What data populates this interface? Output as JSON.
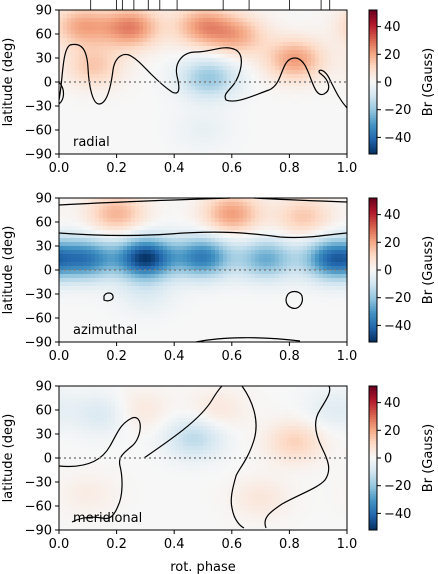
{
  "chart_data": [
    {
      "type": "heatmap",
      "panel_label": "radial",
      "xlabel": "",
      "ylabel": "latitude (deg)",
      "xlim": [
        0,
        1
      ],
      "ylim": [
        -90,
        90
      ],
      "xticks": [
        "0.0",
        "0.2",
        "0.4",
        "0.6",
        "0.8",
        "1.0"
      ],
      "yticks": [
        "90",
        "60",
        "30",
        "0",
        "−30",
        "−60",
        "−90"
      ],
      "colorbar_label": "Br (Gauss)",
      "colorbar_ticks": [
        "40",
        "20",
        "0",
        "−20",
        "−40"
      ],
      "clim": [
        -52,
        52
      ],
      "field_features": [
        {
          "x": 0.25,
          "lat": 68,
          "value": 26
        },
        {
          "x": 0.5,
          "lat": 70,
          "value": 22
        },
        {
          "x": 0.62,
          "lat": 58,
          "value": 18
        },
        {
          "x": 0.08,
          "lat": 70,
          "value": 20
        },
        {
          "x": 0.82,
          "lat": 28,
          "value": 22
        },
        {
          "x": 0.52,
          "lat": 5,
          "value": -20
        },
        {
          "x": 0.12,
          "lat": 20,
          "value": 14
        },
        {
          "x": 0.5,
          "lat": -60,
          "value": -4
        }
      ],
      "observation_phases": [
        0.11,
        0.2,
        0.22,
        0.26,
        0.31,
        0.35,
        0.41,
        0.57,
        0.66,
        0.8,
        0.91,
        0.94
      ]
    },
    {
      "type": "heatmap",
      "panel_label": "azimuthal",
      "xlabel": "",
      "ylabel": "latitude (deg)",
      "xlim": [
        0,
        1
      ],
      "ylim": [
        -90,
        90
      ],
      "xticks": [
        "0.0",
        "0.2",
        "0.4",
        "0.6",
        "0.8",
        "1.0"
      ],
      "yticks": [
        "90",
        "60",
        "30",
        "0",
        "−30",
        "−60",
        "−90"
      ],
      "colorbar_label": "Br (Gauss)",
      "colorbar_ticks": [
        "40",
        "20",
        "0",
        "−20",
        "−40"
      ],
      "clim": [
        -52,
        52
      ],
      "field_features": [
        {
          "x": 0.6,
          "lat": 70,
          "value": 22
        },
        {
          "x": 0.2,
          "lat": 70,
          "value": 18
        },
        {
          "x": 0.85,
          "lat": 66,
          "value": 14
        },
        {
          "x": 0.3,
          "lat": 15,
          "value": -50
        },
        {
          "x": 0.1,
          "lat": 14,
          "value": -34
        },
        {
          "x": 0.5,
          "lat": 16,
          "value": -36
        },
        {
          "x": 0.72,
          "lat": 14,
          "value": -26
        },
        {
          "x": 0.95,
          "lat": 14,
          "value": -40
        },
        {
          "x": 0.3,
          "lat": -30,
          "value": -6
        }
      ]
    },
    {
      "type": "heatmap",
      "panel_label": "meridional",
      "xlabel": "rot. phase",
      "ylabel": "latitude (deg)",
      "xlim": [
        0,
        1
      ],
      "ylim": [
        -90,
        90
      ],
      "xticks": [
        "0.0",
        "0.2",
        "0.4",
        "0.6",
        "0.8",
        "1.0"
      ],
      "yticks": [
        "90",
        "60",
        "30",
        "0",
        "−30",
        "−60",
        "−90"
      ],
      "colorbar_label": "Br (Gauss)",
      "colorbar_ticks": [
        "40",
        "20",
        "0",
        "−20",
        "−40"
      ],
      "clim": [
        -52,
        52
      ],
      "field_features": [
        {
          "x": 0.47,
          "lat": 25,
          "value": -14
        },
        {
          "x": 0.15,
          "lat": 55,
          "value": -8
        },
        {
          "x": 0.82,
          "lat": 20,
          "value": 12
        },
        {
          "x": 0.28,
          "lat": 60,
          "value": 6
        },
        {
          "x": 0.55,
          "lat": 60,
          "value": 6
        },
        {
          "x": 0.95,
          "lat": 60,
          "value": -6
        },
        {
          "x": 0.7,
          "lat": -50,
          "value": 6
        },
        {
          "x": 0.1,
          "lat": -45,
          "value": 4
        }
      ]
    }
  ]
}
